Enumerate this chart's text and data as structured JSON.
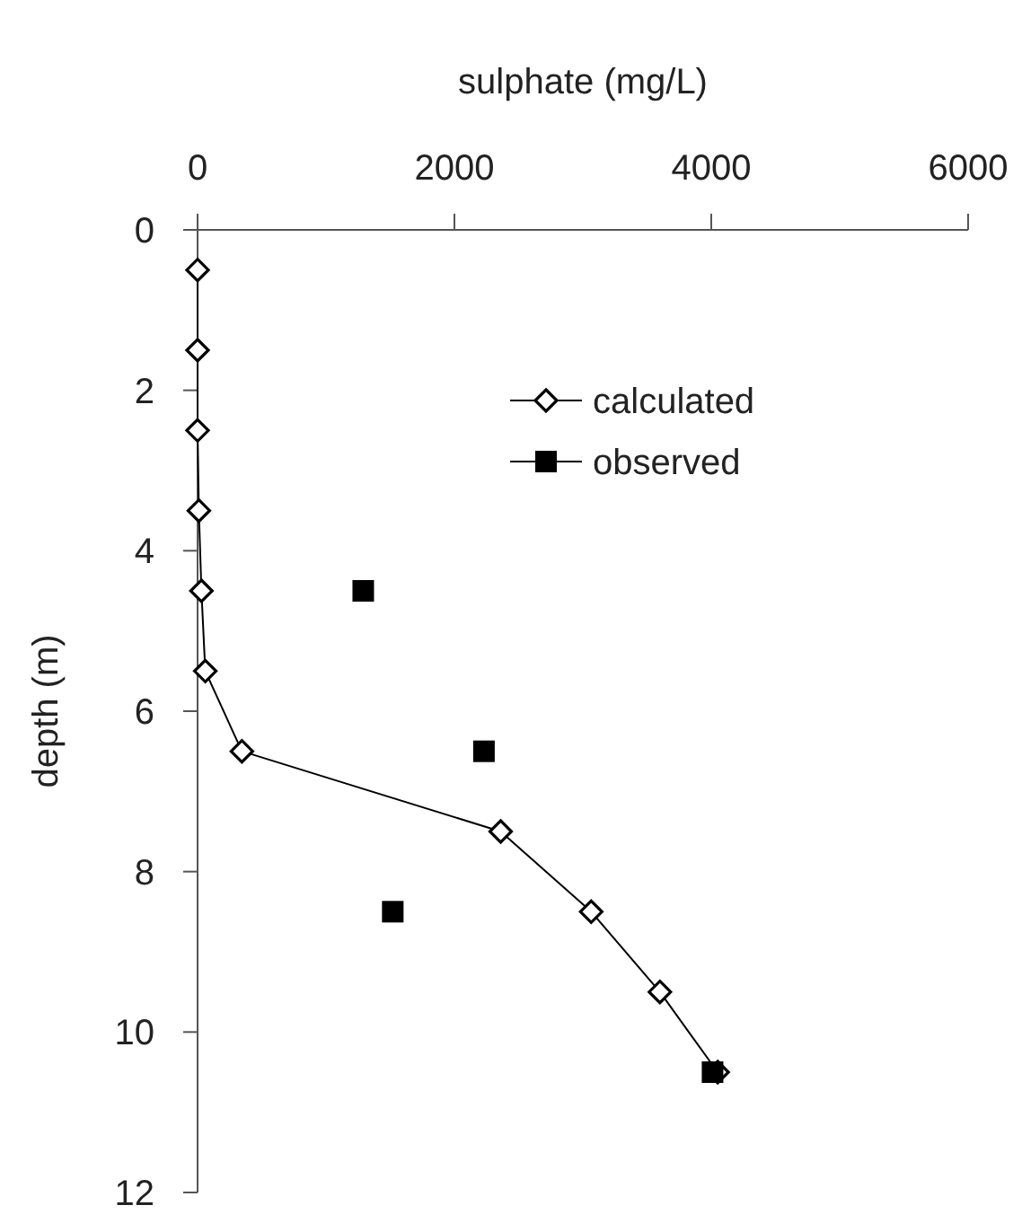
{
  "chart_data": {
    "type": "line",
    "xlabel": "sulphate (mg/L)",
    "ylabel": "depth (m)",
    "xlim": [
      0,
      6000
    ],
    "xticks": [
      0,
      2000,
      4000,
      6000
    ],
    "ylim": [
      12,
      0
    ],
    "yticks": [
      0,
      2,
      4,
      6,
      8,
      10,
      12
    ],
    "grid": false,
    "legend": "top right",
    "series": [
      {
        "name": "calculated",
        "marker": "diamond",
        "color": "#000000",
        "x": [
          0,
          0,
          0,
          10,
          30,
          60,
          345,
          2360,
          3065,
          3600,
          4050
        ],
        "values": [
          0.5,
          1.5,
          2.5,
          3.5,
          4.5,
          5.5,
          6.5,
          7.5,
          8.5,
          9.5,
          10.5
        ]
      },
      {
        "name": "observed",
        "type": "scatter",
        "marker": "square",
        "color": "#000000",
        "x": [
          1290,
          2230,
          1520,
          4010
        ],
        "values": [
          4.5,
          6.5,
          8.5,
          10.5
        ]
      }
    ]
  }
}
